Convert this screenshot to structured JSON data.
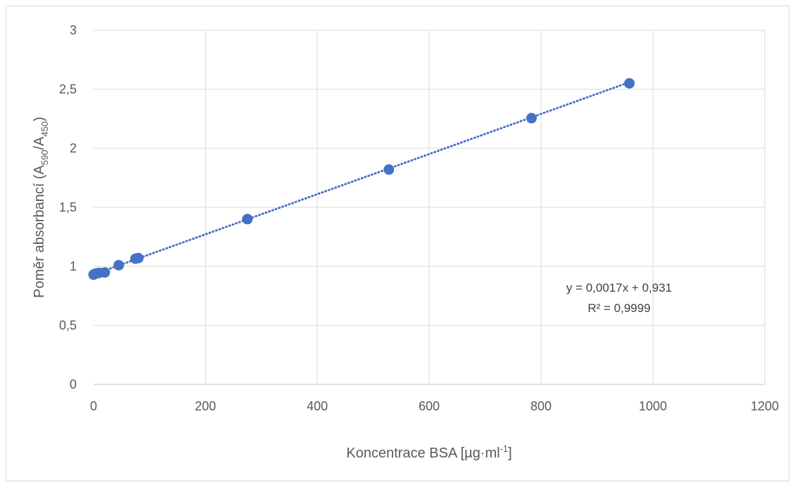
{
  "chart_data": {
    "type": "scatter",
    "title": "",
    "xlabel": {
      "main": "Koncentrace BSA  [µg·ml",
      "sup": "-1",
      "close": "]"
    },
    "ylabel": {
      "main": "Poměr absorbancí (A",
      "sub1": "590",
      "slash": "/A",
      "sub2": "450",
      "close": ")"
    },
    "xlim": [
      0,
      1200
    ],
    "ylim": [
      0,
      3
    ],
    "x_ticks": [
      "0",
      "200",
      "400",
      "600",
      "800",
      "1000",
      "1200"
    ],
    "y_ticks": [
      "0",
      "0,5",
      "1",
      "1,5",
      "2",
      "2,5",
      "3"
    ],
    "grid": true,
    "series": [
      {
        "x": [
          0,
          2,
          5,
          10,
          20,
          45,
          75,
          80,
          275,
          528,
          783,
          958
        ],
        "y": [
          0.93,
          0.935,
          0.94,
          0.945,
          0.948,
          1.01,
          1.065,
          1.07,
          1.4,
          1.82,
          2.255,
          2.55
        ],
        "color": "#4472c4"
      }
    ],
    "trendline": {
      "slope": 0.0017,
      "intercept": 0.931,
      "x_range": [
        0,
        958
      ],
      "color": "#4472c4",
      "style": "dotted"
    },
    "annotations": {
      "equation": "y = 0,0017x + 0,931",
      "r2": "R² = 0,9999"
    }
  }
}
